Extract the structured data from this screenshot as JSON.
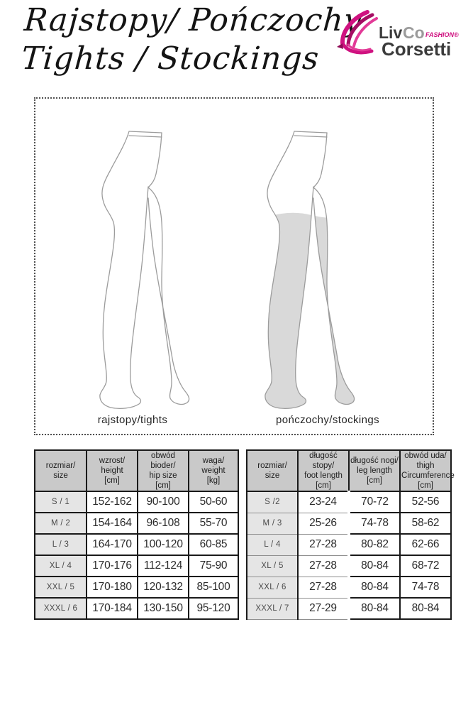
{
  "header": {
    "title_line1": "Rajstopy/ Pończochy",
    "title_line2": "Tights / Stockings",
    "logo": {
      "liv": "Liv",
      "co": "Co",
      "fashion": "FASHION®",
      "corsetti": "Corsetti",
      "ribbon_icon": "magenta-ribbon-swirl"
    }
  },
  "diagram": {
    "tights_label": "rajstopy/tights",
    "stockings_label": "pończochy/stockings"
  },
  "tights_table": {
    "headers": [
      [
        "rozmiar/",
        "size"
      ],
      [
        "wzrost/",
        "height",
        "[cm]"
      ],
      [
        "obwód bioder/",
        "hip size",
        "[cm]"
      ],
      [
        "waga/",
        "weight",
        "[kg]"
      ]
    ],
    "rows": [
      [
        "S / 1",
        "152-162",
        "90-100",
        "50-60"
      ],
      [
        "M / 2",
        "154-164",
        "96-108",
        "55-70"
      ],
      [
        "L / 3",
        "164-170",
        "100-120",
        "60-85"
      ],
      [
        "XL / 4",
        "170-176",
        "112-124",
        "75-90"
      ],
      [
        "XXL / 5",
        "170-180",
        "120-132",
        "85-100"
      ],
      [
        "XXXL / 6",
        "170-184",
        "130-150",
        "95-120"
      ]
    ]
  },
  "stockings_table": {
    "headers": [
      [
        "rozmiar/",
        "size"
      ],
      [
        "długość stopy/",
        "foot length",
        "[cm]"
      ],
      [
        "długość nogi/",
        "leg length",
        "[cm]"
      ],
      [
        "obwód uda/",
        "thigh",
        "Circumference",
        "[cm]"
      ]
    ],
    "rows": [
      [
        "S /2",
        "23-24",
        "70-72",
        "52-56"
      ],
      [
        "M / 3",
        "25-26",
        "74-78",
        "58-62"
      ],
      [
        "L / 4",
        "27-28",
        "80-82",
        "62-66"
      ],
      [
        "XL / 5",
        "27-28",
        "80-84",
        "68-72"
      ],
      [
        "XXL / 6",
        "27-28",
        "80-84",
        "74-78"
      ],
      [
        "XXXL / 7",
        "27-29",
        "80-84",
        "80-84"
      ]
    ]
  },
  "colors": {
    "accent_magenta": "#cf1280",
    "table_header_bg": "#c9c9c9",
    "size_column_bg": "#e5e5e5",
    "stocking_fill": "#d9d9d9",
    "table_border": "#1a1a1a"
  }
}
